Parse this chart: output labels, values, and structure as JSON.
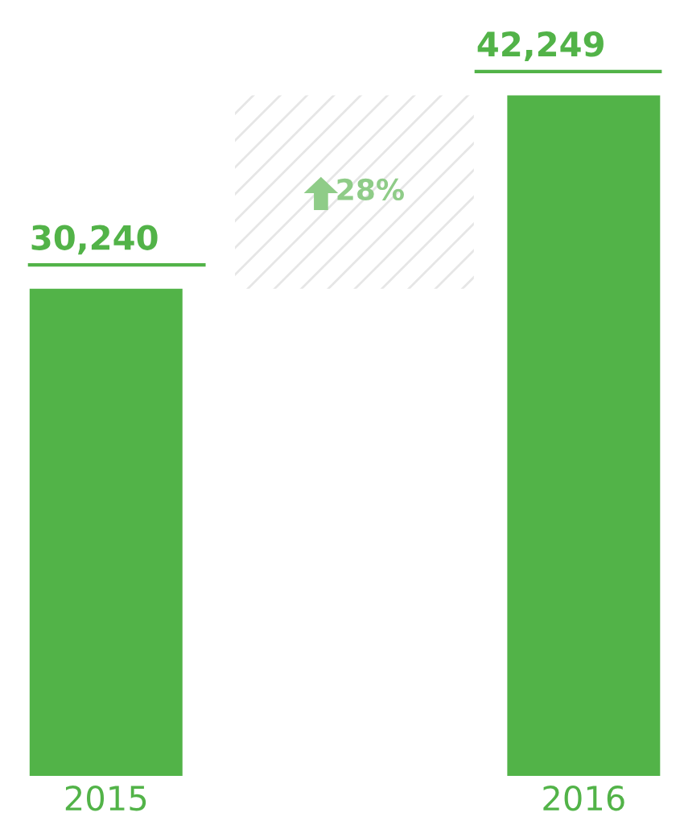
{
  "chart_data": {
    "type": "bar",
    "categories": [
      "2015",
      "2016"
    ],
    "values": [
      30240,
      42249
    ],
    "value_labels": [
      "30,240",
      "42,249"
    ],
    "color": "#52b348",
    "tick_labels": "x",
    "annotations": [
      "28%"
    ]
  }
}
